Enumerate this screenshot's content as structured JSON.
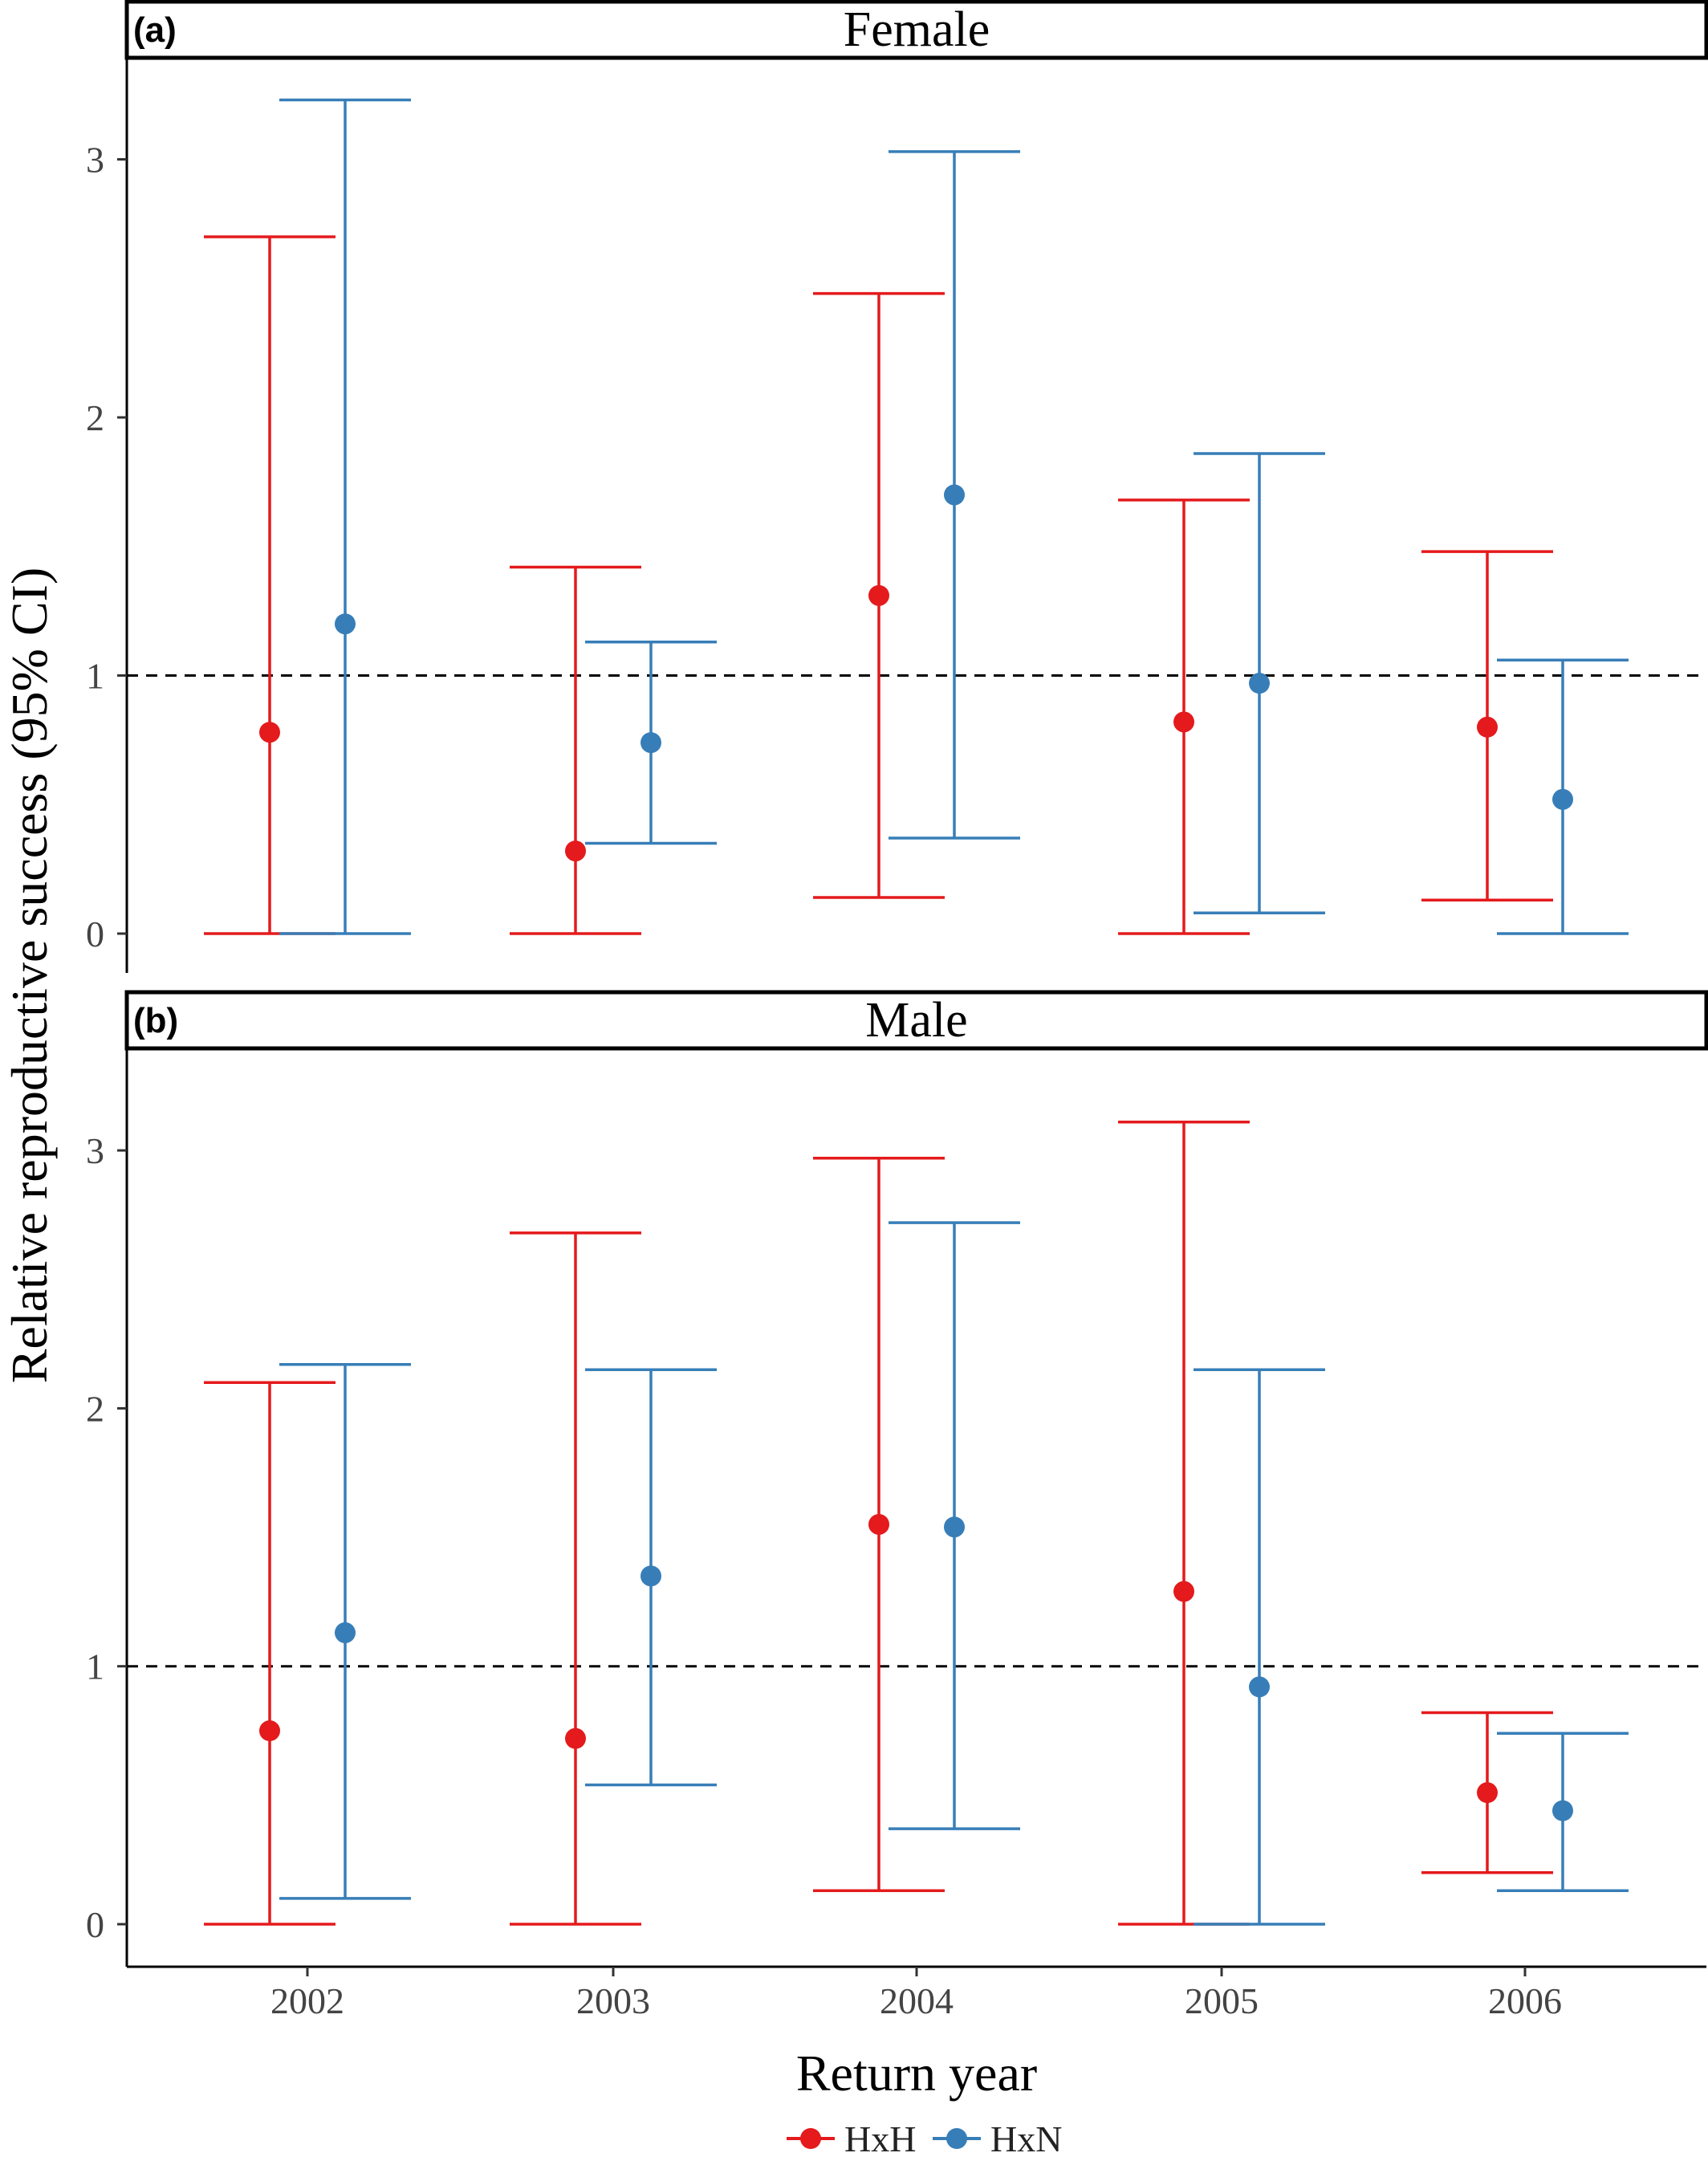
{
  "chart_data": {
    "type": "scatter",
    "ylabel": "Relative reproductive success (95% CI)",
    "xlabel": "Return year",
    "categories": [
      "2002",
      "2003",
      "2004",
      "2005",
      "2006"
    ],
    "ylim": [
      0,
      3.4
    ],
    "yticks": [
      "0",
      "1",
      "2",
      "3"
    ],
    "reference_line": 1,
    "legend": {
      "position": "bottom",
      "items": [
        {
          "name": "HxH",
          "color": "#e41a1c"
        },
        {
          "name": "HxN",
          "color": "#377eb8"
        }
      ]
    },
    "panels": [
      {
        "tag": "(a)",
        "strip": "Female",
        "series": [
          {
            "name": "HxH",
            "color": "#e41a1c",
            "values": [
              0.78,
              0.32,
              1.31,
              0.82,
              0.8
            ],
            "lower": [
              0.0,
              0.0,
              0.14,
              0.0,
              0.13
            ],
            "upper": [
              2.7,
              1.42,
              2.48,
              1.68,
              1.48
            ]
          },
          {
            "name": "HxN",
            "color": "#377eb8",
            "values": [
              1.2,
              0.74,
              1.7,
              0.97,
              0.52
            ],
            "lower": [
              0.0,
              0.35,
              0.37,
              0.08,
              0.0
            ],
            "upper": [
              3.23,
              1.13,
              3.03,
              1.86,
              1.06
            ]
          }
        ]
      },
      {
        "tag": "(b)",
        "strip": "Male",
        "series": [
          {
            "name": "HxH",
            "color": "#e41a1c",
            "values": [
              0.75,
              0.72,
              1.55,
              1.29,
              0.51
            ],
            "lower": [
              0.0,
              0.0,
              0.13,
              0.0,
              0.2
            ],
            "upper": [
              2.1,
              2.68,
              2.97,
              3.11,
              0.82
            ]
          },
          {
            "name": "HxN",
            "color": "#377eb8",
            "values": [
              1.13,
              1.35,
              1.54,
              0.92,
              0.44
            ],
            "lower": [
              0.1,
              0.54,
              0.37,
              0.0,
              0.13
            ],
            "upper": [
              2.17,
              2.15,
              2.72,
              2.15,
              0.74
            ]
          }
        ]
      }
    ]
  }
}
